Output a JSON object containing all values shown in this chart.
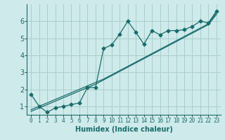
{
  "xlabel": "Humidex (Indice chaleur)",
  "background_color": "#ceeaea",
  "grid_color": "#aacece",
  "line_color": "#1a6b6b",
  "xlim": [
    -0.5,
    23.5
  ],
  "ylim": [
    0.5,
    7.0
  ],
  "xticks": [
    0,
    1,
    2,
    3,
    4,
    5,
    6,
    7,
    8,
    9,
    10,
    11,
    12,
    13,
    14,
    15,
    16,
    17,
    18,
    19,
    20,
    21,
    22,
    23
  ],
  "yticks": [
    1,
    2,
    3,
    4,
    5,
    6
  ],
  "x_data": [
    0,
    1,
    2,
    3,
    4,
    5,
    6,
    7,
    8,
    9,
    10,
    11,
    12,
    13,
    14,
    15,
    16,
    17,
    18,
    19,
    20,
    21,
    22,
    23
  ],
  "y_scatter": [
    1.7,
    1.0,
    0.65,
    0.9,
    1.0,
    1.1,
    1.2,
    2.1,
    2.1,
    4.4,
    4.6,
    5.25,
    6.0,
    5.35,
    4.65,
    5.45,
    5.2,
    5.45,
    5.45,
    5.5,
    5.7,
    6.0,
    5.9,
    6.6
  ],
  "y_line1": [
    0.8,
    1.0,
    1.2,
    1.4,
    1.6,
    1.8,
    2.0,
    2.2,
    2.4,
    2.6,
    2.85,
    3.1,
    3.35,
    3.6,
    3.85,
    4.1,
    4.35,
    4.6,
    4.85,
    5.1,
    5.35,
    5.6,
    5.85,
    6.5
  ],
  "y_line2": [
    0.7,
    0.9,
    1.1,
    1.3,
    1.5,
    1.7,
    1.9,
    2.1,
    2.3,
    2.55,
    2.8,
    3.05,
    3.3,
    3.55,
    3.8,
    4.05,
    4.3,
    4.55,
    4.8,
    5.05,
    5.3,
    5.55,
    5.8,
    6.4
  ]
}
